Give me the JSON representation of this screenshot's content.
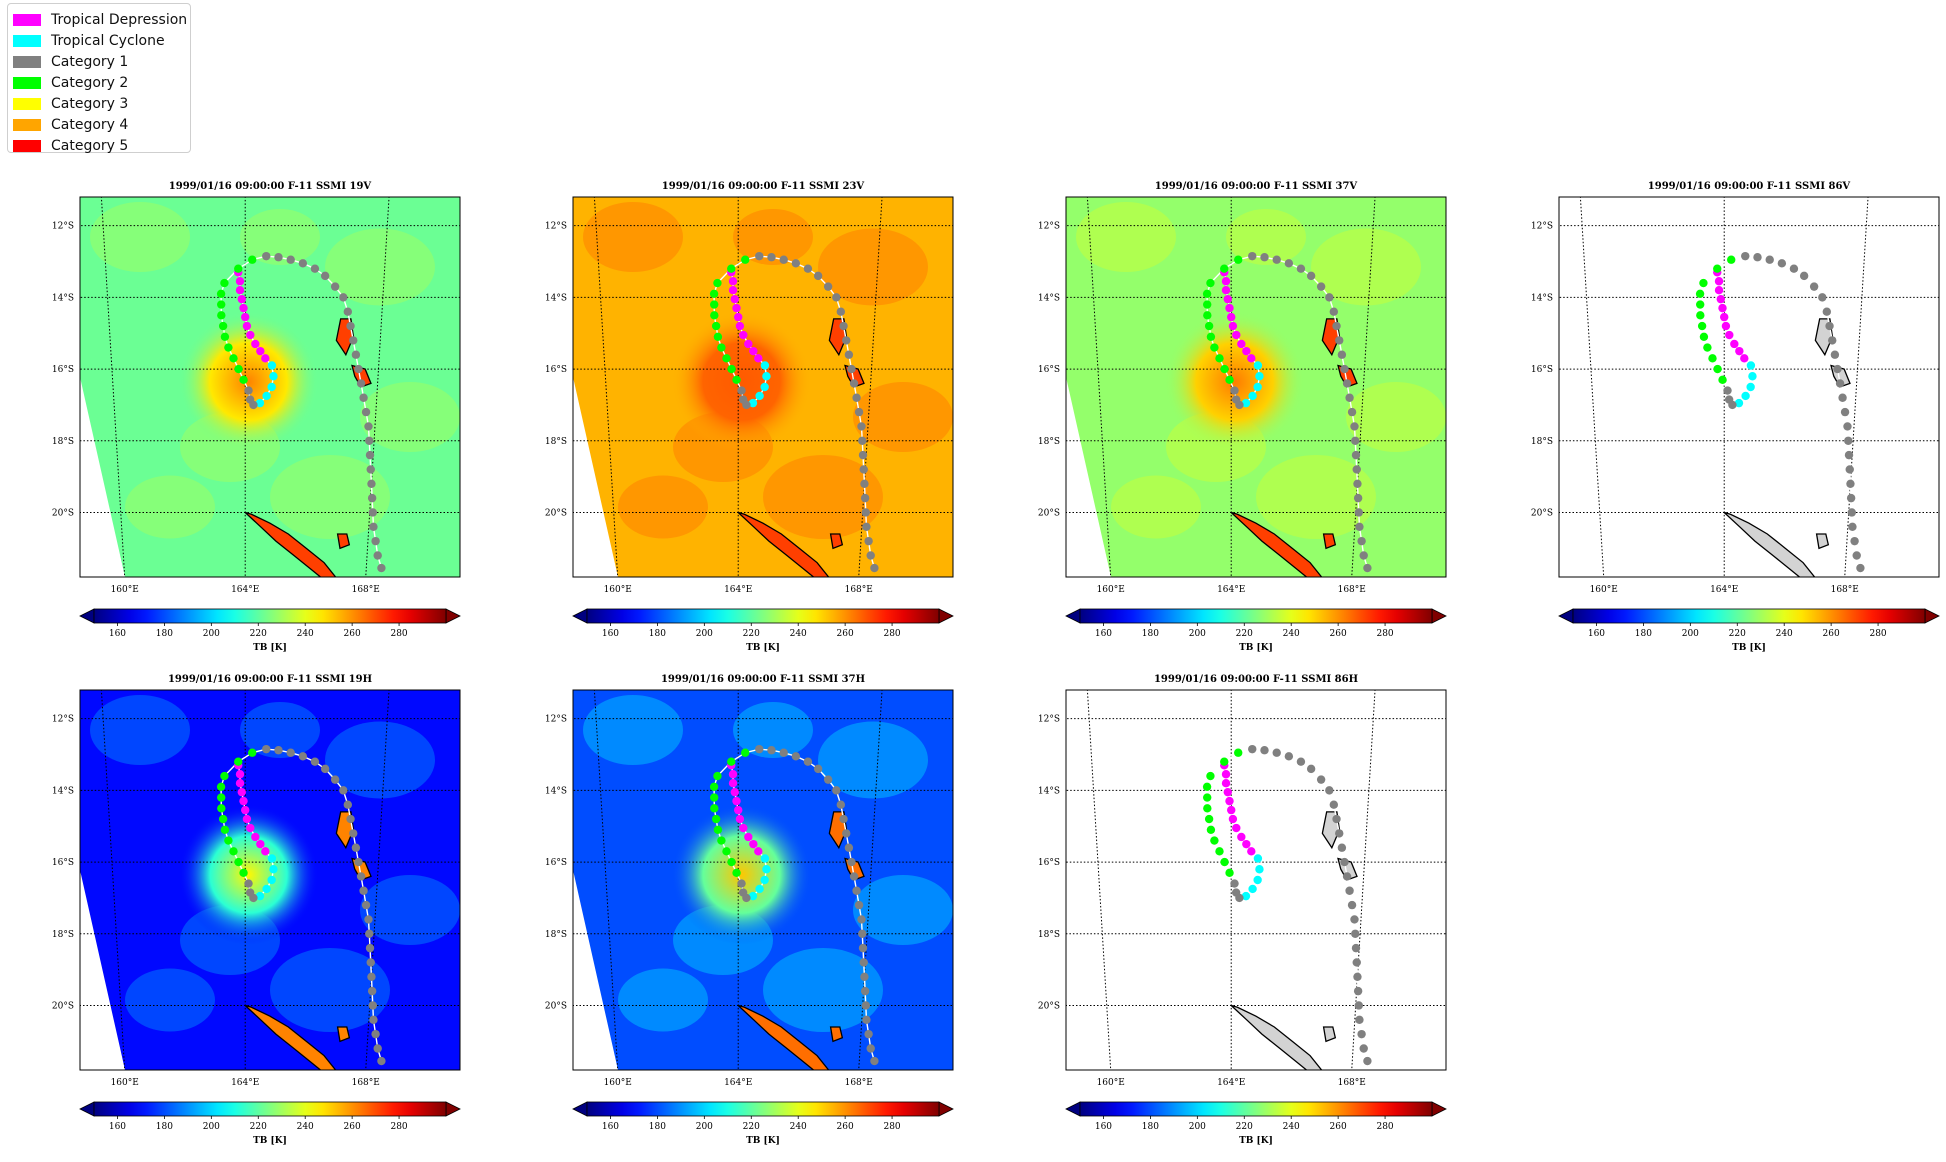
{
  "legend": [
    {
      "label": "Tropical Depression",
      "color": "#ff00ff"
    },
    {
      "label": "Tropical Cyclone",
      "color": "#00ffff"
    },
    {
      "label": "Category 1",
      "color": "#808080"
    },
    {
      "label": "Category 2",
      "color": "#00ff00"
    },
    {
      "label": "Category 3",
      "color": "#ffff00"
    },
    {
      "label": "Category 4",
      "color": "#ffa500"
    },
    {
      "label": "Category 5",
      "color": "#ff0000"
    }
  ],
  "axis_tick_labels": {
    "lat": [
      "12°S",
      "14°S",
      "16°S",
      "18°S",
      "20°S"
    ],
    "lon": [
      "160°E",
      "164°E",
      "168°E"
    ]
  },
  "colorbar": {
    "label": "TB [K]",
    "ticks": [
      160,
      180,
      200,
      220,
      240,
      260,
      280
    ],
    "range": [
      150,
      300
    ],
    "colormap": "jet",
    "extend": "both"
  },
  "chart_data": [
    {
      "type": "heatmap",
      "title": "1999/01/16 09:00:00  F-11 SSMI 19V",
      "background_value": 222,
      "core_value": 262,
      "island_value": 272,
      "xlim": [
        159,
        170.5
      ],
      "ylim": [
        -21.8,
        -11.2
      ],
      "coastline_fill": "none"
    },
    {
      "type": "heatmap",
      "title": "1999/01/16 09:00:00  F-11 SSMI 23V",
      "background_value": 255,
      "core_value": 268,
      "island_value": 272,
      "xlim": [
        159,
        170.5
      ],
      "ylim": [
        -21.8,
        -11.2
      ],
      "coastline_fill": "none"
    },
    {
      "type": "heatmap",
      "title": "1999/01/16 09:00:00  F-11 SSMI 37V",
      "background_value": 228,
      "core_value": 263,
      "island_value": 272,
      "xlim": [
        159,
        170.5
      ],
      "ylim": [
        -21.8,
        -11.2
      ],
      "coastline_fill": "none"
    },
    {
      "type": "heatmap",
      "title": "1999/01/16 09:00:00  F-11 SSMI 86V",
      "background_value": null,
      "xlim": [
        159,
        170.5
      ],
      "ylim": [
        -21.8,
        -11.2
      ],
      "coastline_fill": "#d3d3d3"
    },
    {
      "type": "heatmap",
      "title": "1999/01/16 09:00:00  F-11 SSMI 19H",
      "background_value": 170,
      "core_value": 245,
      "island_value": 262,
      "xlim": [
        159,
        170.5
      ],
      "ylim": [
        -21.8,
        -11.2
      ],
      "coastline_fill": "none"
    },
    {
      "type": "heatmap",
      "title": "1999/01/16 09:00:00  F-11 SSMI 37H",
      "background_value": 180,
      "core_value": 252,
      "island_value": 265,
      "xlim": [
        159,
        170.5
      ],
      "ylim": [
        -21.8,
        -11.2
      ],
      "coastline_fill": "none"
    },
    {
      "type": "heatmap",
      "title": "1999/01/16 09:00:00  F-11 SSMI 86H",
      "background_value": null,
      "xlim": [
        159,
        170.5
      ],
      "ylim": [
        -21.8,
        -11.2
      ],
      "coastline_fill": "#d3d3d3"
    }
  ],
  "track": {
    "points": [
      {
        "lon": 163.8,
        "lat": -13.3,
        "cat": "Tropical Depression"
      },
      {
        "lon": 163.85,
        "lat": -13.55,
        "cat": "Tropical Depression"
      },
      {
        "lon": 163.85,
        "lat": -13.8,
        "cat": "Tropical Depression"
      },
      {
        "lon": 163.9,
        "lat": -14.05,
        "cat": "Tropical Depression"
      },
      {
        "lon": 163.95,
        "lat": -14.3,
        "cat": "Tropical Depression"
      },
      {
        "lon": 164.0,
        "lat": -14.55,
        "cat": "Tropical Depression"
      },
      {
        "lon": 164.05,
        "lat": -14.8,
        "cat": "Tropical Depression"
      },
      {
        "lon": 164.15,
        "lat": -15.05,
        "cat": "Tropical Depression"
      },
      {
        "lon": 164.3,
        "lat": -15.3,
        "cat": "Tropical Depression"
      },
      {
        "lon": 164.45,
        "lat": -15.5,
        "cat": "Tropical Depression"
      },
      {
        "lon": 164.6,
        "lat": -15.7,
        "cat": "Tropical Depression"
      },
      {
        "lon": 164.8,
        "lat": -15.9,
        "cat": "Tropical Cyclone"
      },
      {
        "lon": 164.85,
        "lat": -16.2,
        "cat": "Tropical Cyclone"
      },
      {
        "lon": 164.8,
        "lat": -16.5,
        "cat": "Tropical Cyclone"
      },
      {
        "lon": 164.65,
        "lat": -16.75,
        "cat": "Tropical Cyclone"
      },
      {
        "lon": 164.45,
        "lat": -16.95,
        "cat": "Tropical Cyclone"
      },
      {
        "lon": 164.25,
        "lat": -17.0,
        "cat": "Category 1"
      },
      {
        "lon": 164.15,
        "lat": -16.85,
        "cat": "Category 1"
      },
      {
        "lon": 164.1,
        "lat": -16.6,
        "cat": "Category 1"
      },
      {
        "lon": 163.95,
        "lat": -16.3,
        "cat": "Category 2"
      },
      {
        "lon": 163.8,
        "lat": -16.0,
        "cat": "Category 2"
      },
      {
        "lon": 163.65,
        "lat": -15.7,
        "cat": "Category 2"
      },
      {
        "lon": 163.5,
        "lat": -15.4,
        "cat": "Category 2"
      },
      {
        "lon": 163.4,
        "lat": -15.1,
        "cat": "Category 2"
      },
      {
        "lon": 163.35,
        "lat": -14.8,
        "cat": "Category 2"
      },
      {
        "lon": 163.3,
        "lat": -14.5,
        "cat": "Category 2"
      },
      {
        "lon": 163.3,
        "lat": -14.2,
        "cat": "Category 2"
      },
      {
        "lon": 163.3,
        "lat": -13.9,
        "cat": "Category 2"
      },
      {
        "lon": 163.4,
        "lat": -13.6,
        "cat": "Category 2"
      },
      {
        "lon": 163.8,
        "lat": -13.2,
        "cat": "Category 2"
      },
      {
        "lon": 164.2,
        "lat": -12.95,
        "cat": "Category 2"
      },
      {
        "lon": 164.6,
        "lat": -12.85,
        "cat": "Category 1"
      },
      {
        "lon": 164.95,
        "lat": -12.88,
        "cat": "Category 1"
      },
      {
        "lon": 165.3,
        "lat": -12.95,
        "cat": "Category 1"
      },
      {
        "lon": 165.65,
        "lat": -13.05,
        "cat": "Category 1"
      },
      {
        "lon": 166.0,
        "lat": -13.2,
        "cat": "Category 1"
      },
      {
        "lon": 166.3,
        "lat": -13.4,
        "cat": "Category 1"
      },
      {
        "lon": 166.6,
        "lat": -13.7,
        "cat": "Category 1"
      },
      {
        "lon": 166.85,
        "lat": -14.0,
        "cat": "Category 1"
      },
      {
        "lon": 167.0,
        "lat": -14.4,
        "cat": "Category 1"
      },
      {
        "lon": 167.1,
        "lat": -14.8,
        "cat": "Category 1"
      },
      {
        "lon": 167.2,
        "lat": -15.2,
        "cat": "Category 1"
      },
      {
        "lon": 167.3,
        "lat": -15.6,
        "cat": "Category 1"
      },
      {
        "lon": 167.4,
        "lat": -16.0,
        "cat": "Category 1"
      },
      {
        "lon": 167.5,
        "lat": -16.4,
        "cat": "Category 1"
      },
      {
        "lon": 167.6,
        "lat": -16.8,
        "cat": "Category 1"
      },
      {
        "lon": 167.7,
        "lat": -17.2,
        "cat": "Category 1"
      },
      {
        "lon": 167.8,
        "lat": -17.6,
        "cat": "Category 1"
      },
      {
        "lon": 167.85,
        "lat": -18.0,
        "cat": "Category 1"
      },
      {
        "lon": 167.9,
        "lat": -18.4,
        "cat": "Category 1"
      },
      {
        "lon": 167.95,
        "lat": -18.8,
        "cat": "Category 1"
      },
      {
        "lon": 168.0,
        "lat": -19.2,
        "cat": "Category 1"
      },
      {
        "lon": 168.05,
        "lat": -19.6,
        "cat": "Category 1"
      },
      {
        "lon": 168.1,
        "lat": -20.0,
        "cat": "Category 1"
      },
      {
        "lon": 168.15,
        "lat": -20.4,
        "cat": "Category 1"
      },
      {
        "lon": 168.25,
        "lat": -20.8,
        "cat": "Category 1"
      },
      {
        "lon": 168.35,
        "lat": -21.2,
        "cat": "Category 1"
      },
      {
        "lon": 168.5,
        "lat": -21.55,
        "cat": "Category 1"
      }
    ]
  }
}
